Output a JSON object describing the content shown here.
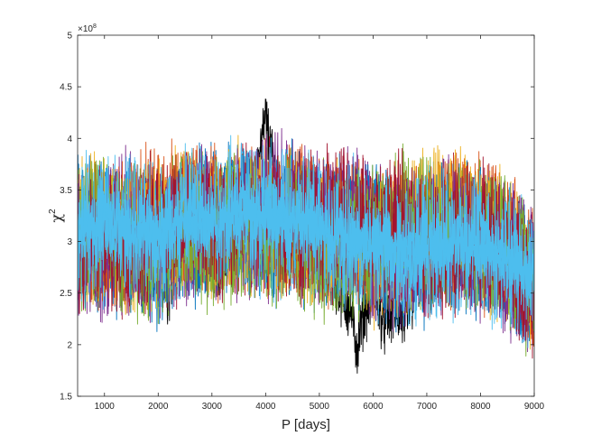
{
  "chart_data": {
    "type": "line",
    "title": "",
    "xlabel": "P [days]",
    "ylabel_base": "χ",
    "ylabel_exp": "2",
    "y_exponent_label_base": "×10",
    "y_exponent_label_exp": "8",
    "xlim": [
      500,
      9000
    ],
    "ylim": [
      1.5,
      5
    ],
    "x_ticks": [
      1000,
      2000,
      3000,
      4000,
      5000,
      6000,
      7000,
      8000,
      9000
    ],
    "y_ticks": [
      1.5,
      2,
      2.5,
      3,
      3.5,
      4,
      4.5,
      5
    ],
    "x_tick_labels": [
      "1000",
      "2000",
      "3000",
      "4000",
      "5000",
      "6000",
      "7000",
      "8000",
      "9000"
    ],
    "y_tick_labels": [
      "1.5",
      "2",
      "2.5",
      "3",
      "3.5",
      "4",
      "4.5",
      "5"
    ],
    "grid": false,
    "legend": "none",
    "series_colors": [
      "#0072BD",
      "#D95319",
      "#EDB120",
      "#7E2F8E",
      "#77AC30",
      "#A2142F",
      "#4DBEEE"
    ],
    "noise_series_count": 14,
    "series": [
      {
        "color": "#000000",
        "x": [
          500,
          1000,
          1500,
          2000,
          2200,
          2500,
          2700,
          3000,
          3300,
          3600,
          3800,
          4000,
          4200,
          4500,
          5000,
          5300,
          5600,
          5700,
          5800,
          6000,
          6200,
          6400,
          6600,
          6800,
          7000,
          7300,
          7600,
          7800,
          8000,
          8500,
          9000
        ],
        "y": [
          3.05,
          3.0,
          2.95,
          2.75,
          2.45,
          3.5,
          3.25,
          2.75,
          2.8,
          3.1,
          3.55,
          4.2,
          3.5,
          3.0,
          2.85,
          2.6,
          2.3,
          1.95,
          2.25,
          2.55,
          2.2,
          2.35,
          2.2,
          2.55,
          2.75,
          3.0,
          3.5,
          3.4,
          3.2,
          2.85,
          2.6
        ]
      },
      {
        "color": "#0072BD",
        "x": [
          500,
          1000,
          1500,
          2000,
          2500,
          3000,
          3500,
          4000,
          4500,
          5000,
          5500,
          6000,
          6500,
          7000,
          7500,
          8000,
          8500,
          9000
        ],
        "y": [
          3.1,
          3.0,
          3.05,
          2.95,
          3.15,
          3.1,
          3.2,
          3.05,
          3.15,
          3.1,
          3.05,
          3.0,
          2.9,
          2.95,
          3.0,
          3.0,
          2.85,
          2.65
        ]
      },
      {
        "color": "#D95319",
        "x": [
          500,
          1000,
          1500,
          2000,
          2500,
          3000,
          3500,
          4000,
          4500,
          5000,
          5500,
          6000,
          6500,
          7000,
          7500,
          8000,
          8500,
          9000
        ],
        "y": [
          3.0,
          3.1,
          3.15,
          3.2,
          3.3,
          3.25,
          3.3,
          3.2,
          3.25,
          3.2,
          3.1,
          3.1,
          3.0,
          3.1,
          3.1,
          3.05,
          2.9,
          2.7
        ]
      },
      {
        "color": "#EDB120",
        "x": [
          500,
          1000,
          1500,
          2000,
          2500,
          3000,
          3500,
          4000,
          4500,
          5000,
          5500,
          6000,
          6500,
          7000,
          7500,
          8000,
          8500,
          9000
        ],
        "y": [
          3.15,
          3.05,
          3.0,
          3.1,
          3.2,
          3.15,
          3.25,
          3.1,
          3.05,
          3.15,
          3.0,
          2.95,
          3.05,
          3.15,
          3.2,
          3.1,
          2.95,
          2.75
        ]
      },
      {
        "color": "#7E2F8E",
        "x": [
          500,
          1000,
          1500,
          2000,
          2500,
          3000,
          3500,
          4000,
          4500,
          5000,
          5500,
          6000,
          6500,
          7000,
          7500,
          8000,
          8500,
          9000
        ],
        "y": [
          2.95,
          3.0,
          3.1,
          3.05,
          3.1,
          3.2,
          3.15,
          3.25,
          3.2,
          3.05,
          3.1,
          3.05,
          2.95,
          3.0,
          3.05,
          2.95,
          2.85,
          2.6
        ]
      },
      {
        "color": "#77AC30",
        "x": [
          500,
          1000,
          1500,
          2000,
          2500,
          3000,
          3500,
          4000,
          4500,
          5000,
          5500,
          6000,
          6500,
          7000,
          7500,
          8000,
          8500,
          9000
        ],
        "y": [
          3.05,
          3.1,
          3.0,
          3.0,
          3.05,
          3.1,
          3.2,
          3.15,
          3.1,
          3.0,
          3.05,
          3.0,
          3.05,
          3.1,
          3.0,
          3.05,
          2.9,
          2.7
        ]
      },
      {
        "color": "#A2142F",
        "x": [
          500,
          1000,
          1500,
          2000,
          2500,
          3000,
          3500,
          4000,
          4500,
          5000,
          5500,
          6000,
          6500,
          7000,
          7500,
          8000,
          8500,
          9000
        ],
        "y": [
          3.0,
          2.95,
          3.05,
          3.1,
          3.25,
          3.2,
          3.3,
          3.2,
          3.15,
          3.1,
          3.15,
          3.05,
          3.1,
          3.0,
          3.1,
          3.0,
          2.85,
          2.6
        ]
      },
      {
        "color": "#4DBEEE",
        "x": [
          500,
          1000,
          1500,
          2000,
          2500,
          3000,
          3500,
          4000,
          4500,
          5000,
          5500,
          6000,
          6500,
          7000,
          7500,
          8000,
          8500,
          9000
        ],
        "y": [
          3.1,
          3.15,
          3.1,
          3.1,
          3.15,
          3.2,
          3.3,
          3.25,
          3.2,
          3.15,
          3.05,
          3.0,
          2.9,
          2.95,
          2.95,
          2.95,
          2.85,
          2.7
        ]
      }
    ]
  }
}
